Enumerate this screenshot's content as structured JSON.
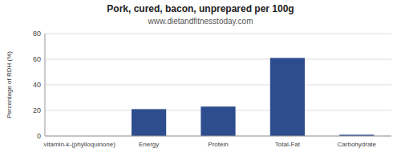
{
  "chart_data": {
    "type": "bar",
    "title": "Pork, cured, bacon, unprepared per 100g",
    "subtitle": "www.dietandfitnesstoday.com",
    "categories": [
      "vitamin-k-(phylloquinone)",
      "Energy",
      "Protein",
      "Total-Fat",
      "Carbohydrate"
    ],
    "values": [
      0,
      21,
      23,
      61,
      1
    ],
    "color": "#2e4d8f",
    "ylabel": "Percentage of RDH (%)",
    "ylim": [
      0,
      80
    ],
    "yticks": [
      0,
      20,
      40,
      60,
      80
    ],
    "grid": true
  }
}
